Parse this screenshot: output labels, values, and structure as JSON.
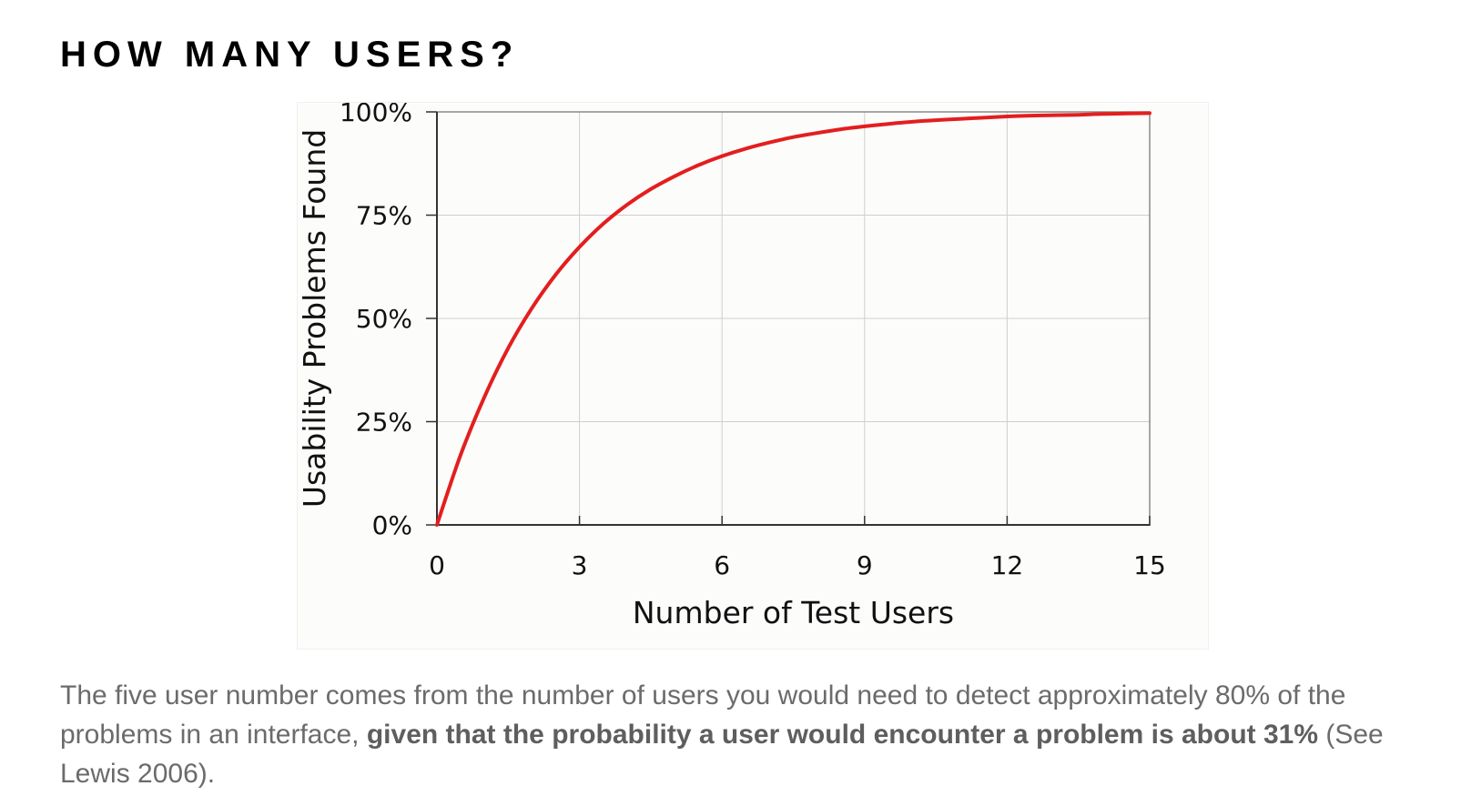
{
  "page": {
    "title": "HOW MANY USERS?"
  },
  "chart_data": {
    "type": "line",
    "xlabel": "Number of Test Users",
    "ylabel": "Usability Problems Found",
    "xlim": [
      0,
      15
    ],
    "ylim": [
      0,
      100
    ],
    "x_ticks": [
      "0",
      "3",
      "6",
      "9",
      "12",
      "15"
    ],
    "y_ticks": [
      "0%",
      "25%",
      "50%",
      "75%",
      "100%"
    ],
    "grid": true,
    "series_color": "#e31e1e",
    "series": [
      {
        "x": [
          0,
          0.5,
          1,
          1.5,
          2,
          2.5,
          3,
          3.5,
          4,
          4.5,
          5,
          5.5,
          6,
          6.5,
          7,
          7.5,
          8,
          8.5,
          9,
          9.5,
          10,
          10.5,
          11,
          11.5,
          12,
          12.5,
          13,
          13.5,
          14,
          14.5,
          15
        ],
        "y": [
          0,
          17.0,
          31.0,
          42.8,
          52.5,
          60.6,
          67.3,
          72.9,
          77.5,
          81.3,
          84.4,
          87.1,
          89.3,
          91.1,
          92.6,
          93.9,
          94.9,
          95.8,
          96.5,
          97.1,
          97.6,
          98.0,
          98.3,
          98.6,
          98.9,
          99.1,
          99.2,
          99.3,
          99.5,
          99.6,
          99.7
        ]
      }
    ]
  },
  "caption": {
    "text_before": "The five user number comes from the number of users you would need to detect approximately 80% of the problems in an interface, ",
    "bold_text": "given that the probability a user would encounter a problem is about 31%",
    "text_after": " (See Lewis 2006)."
  }
}
